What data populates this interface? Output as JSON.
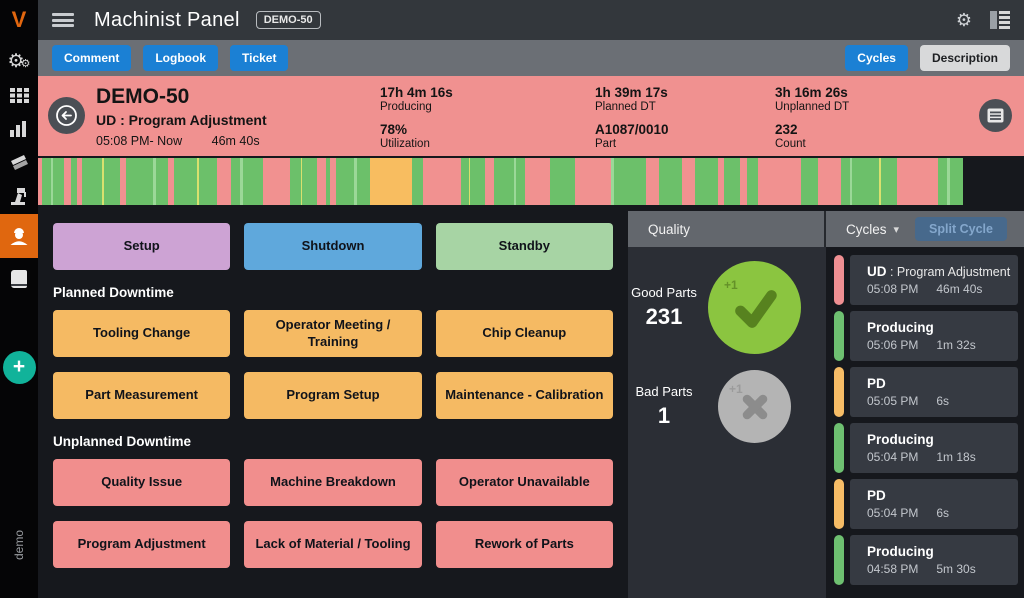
{
  "header": {
    "title": "Machinist Panel",
    "badge": "DEMO-50",
    "icons": [
      "hamburger-menu",
      "settings-gear",
      "panel-toggle"
    ]
  },
  "toolbar": {
    "comment_label": "Comment",
    "logbook_label": "Logbook",
    "ticket_label": "Ticket",
    "cycles_label": "Cycles",
    "description_label": "Description"
  },
  "sidebar": {
    "logo": "V",
    "icons": [
      "machine-gears",
      "apps-grid",
      "analytics-bars",
      "tools",
      "setup-robot",
      "operator",
      "logbook-book"
    ],
    "active_item": "operator",
    "active_color": "#e0670f",
    "fab_label": "+",
    "fab_color": "#11b39a",
    "env_label": "demo"
  },
  "banner": {
    "background": "#f09190",
    "machine": "DEMO-50",
    "state": "UD : Program Adjustment",
    "time_range": "05:08 PM- Now",
    "duration": "46m 40s",
    "stats": [
      {
        "value": "17h 4m 16s",
        "label": "Producing"
      },
      {
        "value": "78%",
        "label": "Utilization"
      },
      {
        "value": "1h 39m 17s",
        "label": "Planned DT"
      },
      {
        "value": "A1087/0010",
        "label": "Part"
      },
      {
        "value": "3h 16m 26s",
        "label": "Unplanned DT"
      },
      {
        "value": "232",
        "label": "Count"
      }
    ]
  },
  "timeline": {
    "colors": {
      "g": "#6cc06a",
      "G": "#9bd898",
      "y": "#d9e06e",
      "p": "#f19190",
      "o": "#f8bd60"
    },
    "segments": [
      "p4",
      "g10",
      "G3",
      "g12",
      "p8",
      "g6",
      "p6",
      "g22",
      "y2",
      "g18",
      "p7",
      "g30",
      "G3",
      "g14",
      "p6",
      "g26",
      "y2",
      "g20",
      "p16",
      "g10",
      "G3",
      "g22",
      "p30",
      "g12",
      "y2",
      "g16",
      "p10",
      "g5",
      "p7",
      "g20",
      "G3",
      "g14",
      "o47",
      "g12",
      "p43",
      "g8",
      "y2",
      "g16",
      "p10",
      "g22",
      "G3",
      "g10",
      "p28",
      "g27",
      "p40",
      "G4",
      "g35",
      "p15",
      "g25",
      "p15",
      "g25",
      "p7",
      "g18",
      "p8",
      "g12",
      "p48",
      "g19",
      "p25",
      "g10",
      "G3",
      "g30",
      "y2",
      "g18",
      "p45",
      "g10",
      "G3",
      "g15"
    ]
  },
  "actions": {
    "top": [
      {
        "label": "Setup",
        "color": "#cda3d4"
      },
      {
        "label": "Shutdown",
        "color": "#5fa8dc"
      },
      {
        "label": "Standby",
        "color": "#a7d4a4"
      }
    ],
    "planned_heading": "Planned Downtime",
    "planned_color": "#f5ba63",
    "planned": [
      "Tooling Change",
      "Operator Meeting / Training",
      "Chip Cleanup",
      "Part Measurement",
      "Program Setup",
      "Maintenance - Calibration"
    ],
    "unplanned_heading": "Unplanned Downtime",
    "unplanned_color": "#f18e8d",
    "unplanned": [
      "Quality Issue",
      "Machine Breakdown",
      "Operator Unavailable",
      "Program Adjustment",
      "Lack of Material / Tooling",
      "Rework of Parts"
    ]
  },
  "quality": {
    "header": "Quality",
    "good": {
      "label": "Good Parts",
      "count": "231",
      "delta": "+1",
      "circle_color": "#8bc540",
      "glyph_color": "#57821f"
    },
    "bad": {
      "label": "Bad Parts",
      "count": "1",
      "delta": "+1",
      "circle_color": "#b4b4b4",
      "glyph_color": "#8c8c8c"
    }
  },
  "cycles": {
    "dropdown_label": "Cycles",
    "split_label": "Split Cycle",
    "items": [
      {
        "title": "UD",
        "subtitle": " : Program Adjustment",
        "time": "05:08 PM",
        "duration": "46m 40s",
        "accent": "#ef8f92"
      },
      {
        "title": "Producing",
        "subtitle": "",
        "time": "05:06 PM",
        "duration": "1m 32s",
        "accent": "#6ec071"
      },
      {
        "title": "PD",
        "subtitle": "",
        "time": "05:05 PM",
        "duration": "6s",
        "accent": "#f6bc66"
      },
      {
        "title": "Producing",
        "subtitle": "",
        "time": "05:04 PM",
        "duration": "1m 18s",
        "accent": "#6ec071"
      },
      {
        "title": "PD",
        "subtitle": "",
        "time": "05:04 PM",
        "duration": "6s",
        "accent": "#f6bc66"
      },
      {
        "title": "Producing",
        "subtitle": "",
        "time": "04:58 PM",
        "duration": "5m 30s",
        "accent": "#6ec071"
      }
    ]
  }
}
